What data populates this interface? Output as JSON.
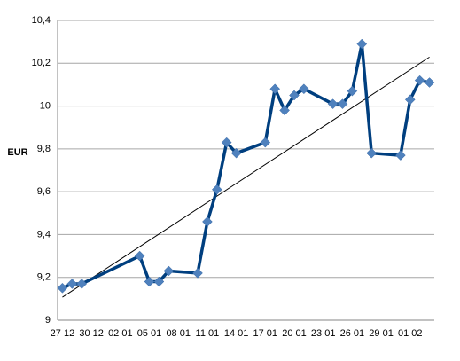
{
  "chart_data": {
    "type": "line",
    "y_label": "EUR",
    "categories": [
      "27 12",
      null,
      null,
      "30 12",
      null,
      null,
      "02 01",
      null,
      null,
      "05 01",
      null,
      null,
      "08 01",
      null,
      null,
      "11 01",
      null,
      null,
      "14 01",
      null,
      null,
      "17 01",
      null,
      null,
      "20 01",
      null,
      null,
      "23 01",
      null,
      null,
      "26 01",
      null,
      null,
      "29 01",
      null,
      null,
      "01 02",
      null,
      null
    ],
    "series": [
      {
        "color": "#003f7f",
        "marker_color": "#4f81bd",
        "values": [
          9.15,
          9.17,
          9.17,
          null,
          null,
          null,
          null,
          null,
          9.3,
          9.18,
          9.18,
          9.23,
          null,
          null,
          9.22,
          9.46,
          9.61,
          9.83,
          9.78,
          null,
          null,
          9.83,
          10.08,
          9.98,
          10.05,
          10.08,
          null,
          null,
          10.01,
          10.01,
          10.07,
          10.29,
          9.78,
          null,
          null,
          9.77,
          10.03,
          10.12,
          10.11
        ]
      }
    ],
    "span_gaps": true,
    "trendline": true,
    "trendline_color": "#000000",
    "ylim": [
      9,
      10.4
    ],
    "yticks": [
      9,
      {
        "value": 9.2,
        "label": "9,2"
      },
      {
        "value": 9.4,
        "label": "9,4"
      },
      {
        "value": 9.6,
        "label": "9,6"
      },
      {
        "value": 9.8,
        "label": "9,8"
      },
      10,
      {
        "value": 10.2,
        "label": "10,2"
      },
      {
        "value": 10.4,
        "label": "10,4"
      }
    ],
    "grid": true
  }
}
